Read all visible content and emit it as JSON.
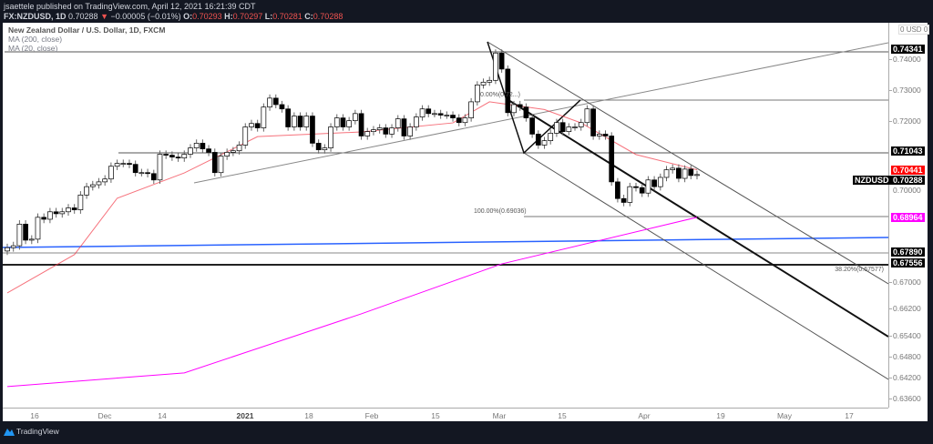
{
  "header": {
    "publish_line": "jsaettele published on TradingView.com, April 12, 2021 16:21:39 CDT",
    "symbol": "FX:NZDUSD, 1D",
    "last": "0.70288",
    "direction_icon": "triangle-down",
    "change": "−0.00005 (−0.01%)",
    "o_label": "O:",
    "o": "0.70293",
    "h_label": "H:",
    "h": "0.70297",
    "l_label": "L:",
    "l": "0.70281",
    "c_label": "C:",
    "c": "0.70288"
  },
  "legend": {
    "title": "New Zealand Dollar / U.S. Dollar, 1D, FXCM",
    "ma200": "MA (200, close)",
    "ma20": "MA (20, close)"
  },
  "price_axis": {
    "currency": "USD",
    "currency_left": "0",
    "currency_right": "0",
    "ticks": [
      "0.74000",
      "0.73000",
      "0.72000",
      "0.70000",
      "0.67000",
      "0.66200",
      "0.65400",
      "0.64800",
      "0.64200",
      "0.63600"
    ],
    "tags": [
      {
        "value": "0.74341",
        "color": "#000000"
      },
      {
        "value": "0.71043",
        "color": "#000000"
      },
      {
        "value": "0.70441",
        "color": "#ff0000"
      },
      {
        "value": "0.70288",
        "color": "#000000",
        "symbol": "NZDUSD"
      },
      {
        "value": "0.68964",
        "color": "#ff00ff"
      },
      {
        "value": "0.67890",
        "color": "#000000"
      },
      {
        "value": "0.67556",
        "color": "#000000"
      }
    ]
  },
  "time_axis": [
    "16",
    "Dec",
    "14",
    "2021",
    "18",
    "Feb",
    "15",
    "Mar",
    "15",
    "Apr",
    "19",
    "May",
    "17"
  ],
  "fib_labels": {
    "zero": "0.00%(0.72...)",
    "hundred": "100.00%(0.69036)",
    "ext": "38.20%(0.67577)"
  },
  "colors": {
    "ma20": "#f23645",
    "ma200": "#ff00ff",
    "trend_blue": "#2962ff",
    "up_body": "#ffffff",
    "down_body": "#000000"
  },
  "footer": {
    "brand": "TradingView"
  },
  "chart_data": {
    "type": "candlestick",
    "symbol": "NZDUSD",
    "scale": "log",
    "ylim": [
      0.634,
      0.749
    ],
    "close": [
      0.6803,
      0.6809,
      0.6875,
      0.6826,
      0.6829,
      0.6896,
      0.689,
      0.6913,
      0.6907,
      0.6913,
      0.6925,
      0.6919,
      0.6965,
      0.6991,
      0.6997,
      0.7006,
      0.7015,
      0.7055,
      0.7064,
      0.7064,
      0.7061,
      0.7035,
      0.7035,
      0.7032,
      0.7012,
      0.7093,
      0.709,
      0.7084,
      0.7081,
      0.7093,
      0.7113,
      0.7128,
      0.711,
      0.7099,
      0.7035,
      0.7087,
      0.7099,
      0.7104,
      0.7122,
      0.718,
      0.7191,
      0.7177,
      0.7244,
      0.7273,
      0.7252,
      0.7238,
      0.718,
      0.7215,
      0.718,
      0.7215,
      0.7128,
      0.7107,
      0.7113,
      0.718,
      0.7209,
      0.718,
      0.72,
      0.7223,
      0.7151,
      0.7165,
      0.7171,
      0.7177,
      0.7157,
      0.7177,
      0.7206,
      0.7151,
      0.718,
      0.7212,
      0.7238,
      0.7223,
      0.7223,
      0.7218,
      0.7218,
      0.7209,
      0.7194,
      0.7209,
      0.7261,
      0.7316,
      0.7325,
      0.7331,
      0.7421,
      0.7368,
      0.7226,
      0.7252,
      0.7244,
      0.7209,
      0.7157,
      0.7122,
      0.7136,
      0.716,
      0.7194,
      0.7165,
      0.718,
      0.718,
      0.7194,
      0.7238,
      0.7151,
      0.7157,
      0.7151,
      0.7006,
      0.6954,
      0.6942,
      0.6991,
      0.6988,
      0.6971,
      0.7012,
      0.6991,
      0.702,
      0.7044,
      0.7049,
      0.7017,
      0.7046,
      0.7026,
      0.7029
    ],
    "ma200": [
      [
        0,
        0.6394
      ],
      [
        29,
        0.6433
      ],
      [
        58,
        0.6605
      ],
      [
        81,
        0.6754
      ],
      [
        113,
        0.6896
      ]
    ],
    "ma20": [
      [
        0,
        0.6667
      ],
      [
        11,
        0.6782
      ],
      [
        18,
        0.6955
      ],
      [
        29,
        0.7034
      ],
      [
        41,
        0.7149
      ],
      [
        58,
        0.7164
      ],
      [
        73,
        0.7193
      ],
      [
        79,
        0.7261
      ],
      [
        88,
        0.7236
      ],
      [
        94,
        0.7193
      ],
      [
        103,
        0.7092
      ],
      [
        113,
        0.7044
      ]
    ]
  }
}
